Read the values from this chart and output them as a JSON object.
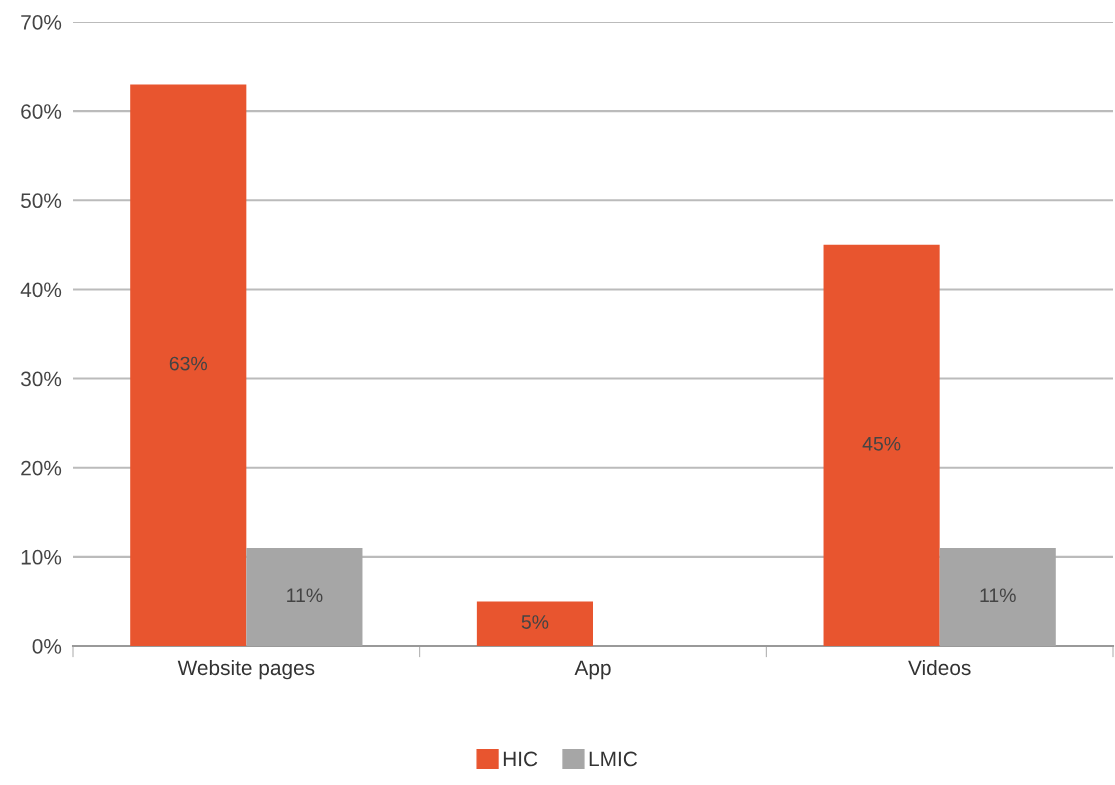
{
  "chart_data": {
    "type": "bar",
    "categories": [
      "Website pages",
      "App",
      "Videos"
    ],
    "series": [
      {
        "name": "HIC",
        "color": "#e8552f",
        "values": [
          63,
          5,
          45
        ],
        "value_labels": [
          "63%",
          "5%",
          "45%"
        ]
      },
      {
        "name": "LMIC",
        "color": "#a6a6a6",
        "values": [
          11,
          null,
          11
        ],
        "value_labels": [
          "11%",
          null,
          "11%"
        ]
      }
    ],
    "ylim": [
      0,
      70
    ],
    "yticks": [
      {
        "value": 0,
        "label": "0%"
      },
      {
        "value": 10,
        "label": "10%"
      },
      {
        "value": 20,
        "label": "20%"
      },
      {
        "value": 30,
        "label": "30%"
      },
      {
        "value": 40,
        "label": "40%"
      },
      {
        "value": 50,
        "label": "50%"
      },
      {
        "value": 60,
        "label": "60%"
      },
      {
        "value": 70,
        "label": "70%"
      }
    ],
    "grid": "y",
    "legend": "bottom"
  }
}
